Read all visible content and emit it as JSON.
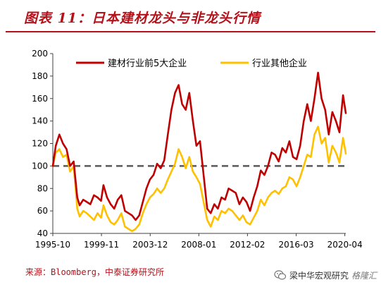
{
  "header": {
    "title": "图表 11：日本建材龙头与非龙头行情"
  },
  "footer": {
    "source": "来源：Bloomberg，中泰证券研究所",
    "watermark_text": "梁中华宏观研究",
    "watermark_logo": "格隆汇"
  },
  "colors": {
    "accent": "#b4121b",
    "series_leaders": "#c00000",
    "series_others": "#ffc000",
    "baseline": "#595959"
  },
  "chart_data": {
    "type": "line",
    "title": "",
    "xlabel": "",
    "ylabel": "",
    "ylim": [
      40,
      200
    ],
    "yticks": [
      40,
      60,
      80,
      100,
      120,
      140,
      160,
      180,
      200
    ],
    "xlim": [
      1995.75,
      2020.33
    ],
    "xtick_labels": [
      "1995-10",
      "1999-11",
      "2003-12",
      "2008-01",
      "2012-02",
      "2016-03",
      "2020-04"
    ],
    "xtick_positions": [
      1995.75,
      1999.83,
      2003.92,
      2008.0,
      2012.08,
      2016.17,
      2020.25
    ],
    "baseline": 100,
    "legend_position": "top",
    "grid": false,
    "series": [
      {
        "name": "建材行业前5大企业",
        "x": [
          1995.75,
          1996.0,
          1996.3,
          1996.6,
          1996.9,
          1997.2,
          1997.5,
          1997.8,
          1998.0,
          1998.3,
          1998.6,
          1998.9,
          1999.2,
          1999.5,
          1999.8,
          2000.0,
          2000.3,
          2000.6,
          2000.9,
          2001.2,
          2001.5,
          2001.8,
          2002.1,
          2002.4,
          2002.7,
          2003.0,
          2003.3,
          2003.6,
          2003.9,
          2004.2,
          2004.5,
          2004.8,
          2005.1,
          2005.4,
          2005.7,
          2006.0,
          2006.3,
          2006.6,
          2006.9,
          2007.2,
          2007.5,
          2007.8,
          2008.1,
          2008.4,
          2008.7,
          2009.0,
          2009.3,
          2009.6,
          2009.9,
          2010.2,
          2010.5,
          2010.8,
          2011.1,
          2011.4,
          2011.7,
          2012.0,
          2012.3,
          2012.6,
          2012.9,
          2013.2,
          2013.5,
          2013.8,
          2014.1,
          2014.4,
          2014.7,
          2015.0,
          2015.3,
          2015.6,
          2015.9,
          2016.2,
          2016.5,
          2016.8,
          2017.1,
          2017.4,
          2017.7,
          2018.0,
          2018.3,
          2018.6,
          2018.9,
          2019.2,
          2019.5,
          2019.8,
          2020.1,
          2020.33
        ],
        "values": [
          100,
          118,
          128,
          120,
          115,
          100,
          104,
          72,
          65,
          70,
          68,
          66,
          74,
          72,
          69,
          83,
          72,
          66,
          62,
          70,
          74,
          60,
          58,
          56,
          52,
          56,
          68,
          80,
          88,
          92,
          102,
          98,
          105,
          128,
          150,
          165,
          172,
          155,
          150,
          165,
          140,
          118,
          122,
          92,
          62,
          58,
          66,
          62,
          72,
          70,
          80,
          78,
          76,
          66,
          72,
          68,
          60,
          72,
          82,
          96,
          92,
          100,
          112,
          110,
          104,
          116,
          112,
          122,
          108,
          106,
          118,
          140,
          155,
          140,
          160,
          183,
          160,
          150,
          128,
          148,
          140,
          130,
          163,
          147
        ]
      },
      {
        "name": "行业其他企业",
        "x": [
          1995.75,
          1996.0,
          1996.3,
          1996.6,
          1996.9,
          1997.2,
          1997.5,
          1997.8,
          1998.0,
          1998.3,
          1998.6,
          1998.9,
          1999.2,
          1999.5,
          1999.8,
          2000.0,
          2000.3,
          2000.6,
          2000.9,
          2001.2,
          2001.5,
          2001.8,
          2002.1,
          2002.4,
          2002.7,
          2003.0,
          2003.3,
          2003.6,
          2003.9,
          2004.2,
          2004.5,
          2004.8,
          2005.1,
          2005.4,
          2005.7,
          2006.0,
          2006.3,
          2006.6,
          2006.9,
          2007.2,
          2007.5,
          2007.8,
          2008.1,
          2008.4,
          2008.7,
          2009.0,
          2009.3,
          2009.6,
          2009.9,
          2010.2,
          2010.5,
          2010.8,
          2011.1,
          2011.4,
          2011.7,
          2012.0,
          2012.3,
          2012.6,
          2012.9,
          2013.2,
          2013.5,
          2013.8,
          2014.1,
          2014.4,
          2014.7,
          2015.0,
          2015.3,
          2015.6,
          2015.9,
          2016.2,
          2016.5,
          2016.8,
          2017.1,
          2017.4,
          2017.7,
          2018.0,
          2018.3,
          2018.6,
          2018.9,
          2019.2,
          2019.5,
          2019.8,
          2020.1,
          2020.33
        ],
        "values": [
          100,
          112,
          115,
          108,
          110,
          95,
          100,
          62,
          55,
          60,
          58,
          55,
          52,
          58,
          54,
          65,
          56,
          50,
          48,
          52,
          58,
          46,
          44,
          42,
          44,
          48,
          58,
          66,
          72,
          75,
          80,
          76,
          80,
          88,
          95,
          102,
          115,
          108,
          98,
          108,
          95,
          90,
          84,
          68,
          52,
          46,
          55,
          52,
          60,
          58,
          62,
          60,
          56,
          52,
          56,
          50,
          48,
          54,
          60,
          70,
          65,
          72,
          76,
          78,
          75,
          80,
          82,
          90,
          88,
          82,
          90,
          100,
          110,
          108,
          128,
          135,
          120,
          125,
          103,
          118,
          112,
          103,
          125,
          111
        ]
      }
    ]
  }
}
